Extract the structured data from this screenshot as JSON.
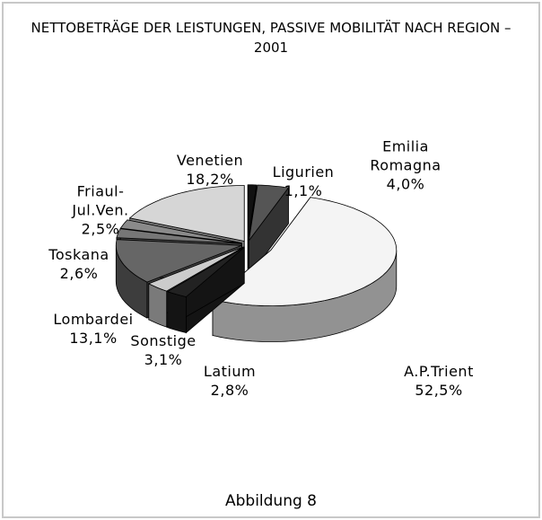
{
  "chart_data": {
    "type": "pie",
    "title": "NETTOBETRÄGE DER LEISTUNGEN, PASSIVE MOBILITÄT NACH REGION – 2001",
    "categories": [
      "Ligurien",
      "Emilia Romagna",
      "A.P.Trient",
      "Latium",
      "Sonstige",
      "Lombardei",
      "Toskana",
      "Friaul-Jul.Ven.",
      "Venetien"
    ],
    "values": [
      1.1,
      4.0,
      52.5,
      2.8,
      3.1,
      13.1,
      2.6,
      2.5,
      18.2
    ],
    "value_labels": [
      "1,1%",
      "4,0%",
      "52,5%",
      "2,8%",
      "3,1%",
      "13,1%",
      "2,6%",
      "2,5%",
      "18,2%"
    ],
    "colors": [
      "#111111",
      "#555555",
      "#f4f4f4",
      "#222222",
      "#cccccc",
      "#666666",
      "#777777",
      "#8a8a8a",
      "#d6d6d6"
    ]
  },
  "caption": "Abbildung 8"
}
